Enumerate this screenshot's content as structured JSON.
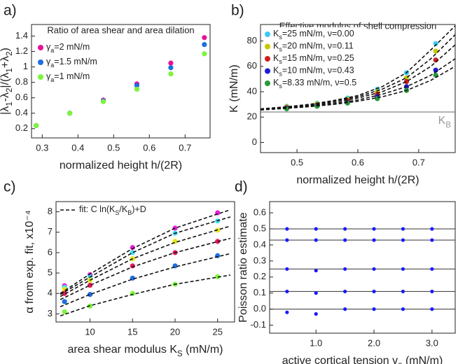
{
  "chart_data": [
    {
      "type": "scatter",
      "label": "a)",
      "title": "Ratio of area shear and area dilation",
      "xlabel": "normalized height h/(2R)",
      "ylabel": [
        "|λ",
        "1",
        "-λ",
        "2",
        "|/(λ",
        "1",
        "+λ",
        "2",
        ")"
      ],
      "xlim": [
        0.27,
        0.77
      ],
      "xticks": [
        0.3,
        0.4,
        0.5,
        0.6,
        0.7
      ],
      "ylim": [
        0.08,
        1.55
      ],
      "yticks": [
        0.2,
        0.4,
        0.6,
        0.8,
        1,
        1.2,
        1.4
      ],
      "legend": "upper left",
      "series": [
        {
          "name": [
            "γ",
            "a",
            "=2 mN/m"
          ],
          "color": "#e8119a",
          "x": [
            0.283,
            0.377,
            0.471,
            0.565,
            0.66,
            0.754
          ],
          "values": [
            0.24,
            0.4,
            0.57,
            0.78,
            1.05,
            1.38
          ]
        },
        {
          "name": [
            "γ",
            "a",
            "=1.5 mN/m"
          ],
          "color": "#1f6fe0",
          "x": [
            0.283,
            0.377,
            0.471,
            0.565,
            0.66,
            0.754
          ],
          "values": [
            0.24,
            0.4,
            0.56,
            0.76,
            0.99,
            1.29
          ]
        },
        {
          "name": [
            "γ",
            "a",
            "=1 mN/m"
          ],
          "color": "#7cf53a",
          "x": [
            0.283,
            0.377,
            0.471,
            0.565,
            0.66,
            0.754
          ],
          "values": [
            0.24,
            0.4,
            0.55,
            0.71,
            0.91,
            1.17
          ]
        }
      ]
    },
    {
      "type": "scatter",
      "label": "b)",
      "title": "Effective modulus of shell compression",
      "xlabel": "normalized height h/(2R)",
      "ylabel": "K (mN/m)",
      "xlim": [
        0.44,
        0.76
      ],
      "xticks": [
        0.5,
        0.6,
        0.7
      ],
      "ylim": [
        -8,
        93
      ],
      "yticks": [
        0,
        20,
        40,
        60,
        80
      ],
      "legend": "upper left",
      "reference": {
        "value": 24,
        "color": "#999999",
        "label": [
          "K",
          "B"
        ]
      },
      "series": [
        {
          "name": [
            "K",
            "s",
            "=25 mN/m, ν=0.00"
          ],
          "color": "#3ec8f5",
          "x": [
            0.483,
            0.533,
            0.583,
            0.632,
            0.68,
            0.728
          ],
          "values": [
            28.5,
            31,
            35,
            42,
            55,
            78
          ]
        },
        {
          "name": [
            "K",
            "s",
            "=20 mN/m, ν=0.11"
          ],
          "color": "#c8c800",
          "x": [
            0.483,
            0.533,
            0.583,
            0.632,
            0.68,
            0.728
          ],
          "values": [
            28,
            30.5,
            34,
            40,
            51,
            72
          ]
        },
        {
          "name": [
            "K",
            "s",
            "=15 mN/m, ν=0.25"
          ],
          "color": "#cc1f1f",
          "x": [
            0.483,
            0.533,
            0.583,
            0.632,
            0.68,
            0.728
          ],
          "values": [
            27.5,
            29.5,
            33,
            38,
            48,
            65
          ]
        },
        {
          "name": [
            "K",
            "s",
            "=10 mN/m, ν=0.43"
          ],
          "color": "#1c1cd6",
          "x": [
            0.483,
            0.533,
            0.583,
            0.632,
            0.68,
            0.728
          ],
          "values": [
            27,
            29,
            31.5,
            36,
            44,
            57
          ]
        },
        {
          "name": [
            "K",
            "s",
            "=8.33 mN/m, ν=0.5"
          ],
          "color": "#2a9a3a",
          "x": [
            0.483,
            0.533,
            0.583,
            0.632,
            0.68,
            0.728
          ],
          "values": [
            26.5,
            28.5,
            31,
            34.5,
            41,
            53
          ]
        },
        {
          "style": "dashed",
          "color": "#111111",
          "x": [
            0.44,
            0.48,
            0.52,
            0.56,
            0.6,
            0.64,
            0.68,
            0.72,
            0.76
          ],
          "values": [
            26.5,
            28,
            30,
            33,
            37,
            44,
            55,
            73,
            92
          ]
        },
        {
          "style": "dashed",
          "color": "#111111",
          "x": [
            0.44,
            0.48,
            0.52,
            0.56,
            0.6,
            0.64,
            0.68,
            0.72,
            0.76
          ],
          "values": [
            26.3,
            27.7,
            29.5,
            32.5,
            36,
            42,
            51,
            66,
            85
          ]
        },
        {
          "style": "dashed",
          "color": "#111111",
          "x": [
            0.44,
            0.48,
            0.52,
            0.56,
            0.6,
            0.64,
            0.68,
            0.72,
            0.76
          ],
          "values": [
            26,
            27.4,
            29,
            31.5,
            35,
            40,
            48,
            60,
            77
          ]
        },
        {
          "style": "dashed",
          "color": "#111111",
          "x": [
            0.44,
            0.48,
            0.52,
            0.56,
            0.6,
            0.64,
            0.68,
            0.72,
            0.76
          ],
          "values": [
            25.8,
            27,
            28.5,
            30.5,
            33.5,
            38,
            44,
            53,
            66
          ]
        },
        {
          "style": "dashed",
          "color": "#111111",
          "x": [
            0.44,
            0.48,
            0.52,
            0.56,
            0.6,
            0.64,
            0.68,
            0.72,
            0.76
          ],
          "values": [
            25.6,
            26.8,
            28.2,
            30,
            32.5,
            36,
            41,
            49,
            60
          ]
        }
      ]
    },
    {
      "type": "scatter",
      "label": "c)",
      "xlabel": [
        "area shear modulus K",
        "S",
        " (mN/m)"
      ],
      "ylabel": "α from exp. fit, x10⁻⁴",
      "xlim": [
        6,
        27
      ],
      "xticks": [
        10,
        15,
        20,
        25
      ],
      "ylim": [
        2.6,
        8.5
      ],
      "yticks": [
        3,
        4,
        5,
        6,
        7,
        8
      ],
      "legend": "upper left",
      "series": [
        {
          "color": "#e81ed8",
          "x": [
            7,
            10,
            15,
            20,
            25
          ],
          "values": [
            4.38,
            4.92,
            6.25,
            7.2,
            7.95
          ]
        },
        {
          "color": "#3ee0f5",
          "x": [
            7,
            10,
            15,
            20,
            25
          ],
          "values": [
            4.3,
            4.82,
            6.0,
            6.95,
            7.55
          ]
        },
        {
          "color": "#e6e61a",
          "x": [
            7,
            10,
            15,
            20,
            25
          ],
          "values": [
            4.2,
            4.65,
            5.7,
            6.55,
            7.1
          ]
        },
        {
          "color": "#e8195a",
          "x": [
            7,
            10,
            15,
            20,
            25
          ],
          "values": [
            4.0,
            4.4,
            5.35,
            6.0,
            6.55
          ]
        },
        {
          "color": "#1f6fe0",
          "x": [
            7,
            10,
            15,
            20,
            25
          ],
          "values": [
            3.6,
            3.95,
            4.75,
            5.35,
            5.85
          ]
        },
        {
          "color": "#7cf53a",
          "x": [
            7,
            10,
            15,
            20,
            25
          ],
          "values": [
            3.1,
            3.38,
            4.0,
            4.45,
            4.82
          ]
        },
        {
          "name": [
            "fit: C ln(K",
            "S",
            "/K",
            "B",
            ")+D"
          ],
          "style": "dashed",
          "color": "#111111",
          "x": [
            6.5,
            10,
            15,
            20,
            26.5
          ],
          "values": [
            4.0,
            4.95,
            6.2,
            7.2,
            8.1
          ]
        },
        {
          "style": "dashed",
          "color": "#111111",
          "x": [
            6.5,
            10,
            15,
            20,
            26.5
          ],
          "values": [
            3.95,
            4.8,
            6.0,
            6.95,
            7.75
          ]
        },
        {
          "style": "dashed",
          "color": "#111111",
          "x": [
            6.5,
            10,
            15,
            20,
            26.5
          ],
          "values": [
            3.85,
            4.65,
            5.7,
            6.5,
            7.3
          ]
        },
        {
          "style": "dashed",
          "color": "#111111",
          "x": [
            6.5,
            10,
            15,
            20,
            26.5
          ],
          "values": [
            3.7,
            4.4,
            5.3,
            6.0,
            6.7
          ]
        },
        {
          "style": "dashed",
          "color": "#111111",
          "x": [
            6.5,
            10,
            15,
            20,
            26.5
          ],
          "values": [
            3.35,
            3.95,
            4.7,
            5.3,
            5.95
          ]
        },
        {
          "style": "dashed",
          "color": "#111111",
          "x": [
            6.5,
            10,
            15,
            20,
            26.5
          ],
          "values": [
            2.9,
            3.4,
            3.95,
            4.45,
            4.9
          ]
        }
      ]
    },
    {
      "type": "scatter",
      "label": "d)",
      "xlabel": [
        "active cortical tension γ",
        "a",
        " (mN/m)"
      ],
      "ylabel": "Poisson ratio estimate",
      "xlim": [
        0.2,
        3.4
      ],
      "xticks": [
        {
          "value": 1,
          "label": "1.0"
        },
        {
          "value": 2,
          "label": "2.0"
        },
        {
          "value": 3,
          "label": "3.0"
        }
      ],
      "ylim": [
        -0.15,
        0.67
      ],
      "yticks": [
        -0.1,
        {
          "value": 0,
          "label": "0.0"
        },
        0.1,
        0.2,
        0.3,
        0.4,
        0.5,
        0.6
      ],
      "hlines": [
        0.5,
        0.43,
        0.25,
        0.11,
        0
      ],
      "series": [
        {
          "color": "#1a1aff",
          "x": [
            0.5,
            1,
            1.5,
            2,
            2.5,
            3
          ],
          "values": [
            0.5,
            0.5,
            0.5,
            0.5,
            0.5,
            0.5
          ]
        },
        {
          "color": "#1a1aff",
          "x": [
            0.5,
            1,
            1.5,
            2,
            2.5,
            3
          ],
          "values": [
            0.43,
            0.43,
            0.43,
            0.43,
            0.43,
            0.43
          ]
        },
        {
          "color": "#1a1aff",
          "x": [
            0.5,
            1,
            1.5,
            2,
            2.5,
            3
          ],
          "values": [
            0.25,
            0.24,
            0.25,
            0.25,
            0.25,
            0.25
          ]
        },
        {
          "color": "#1a1aff",
          "x": [
            0.5,
            1,
            1.5,
            2,
            2.5,
            3
          ],
          "values": [
            0.11,
            0.1,
            0.11,
            0.11,
            0.11,
            0.11
          ]
        },
        {
          "color": "#1a1aff",
          "x": [
            0.5,
            1,
            1.5,
            2,
            2.5,
            3
          ],
          "values": [
            -0.02,
            -0.03,
            0,
            0,
            0,
            0
          ]
        }
      ]
    }
  ]
}
